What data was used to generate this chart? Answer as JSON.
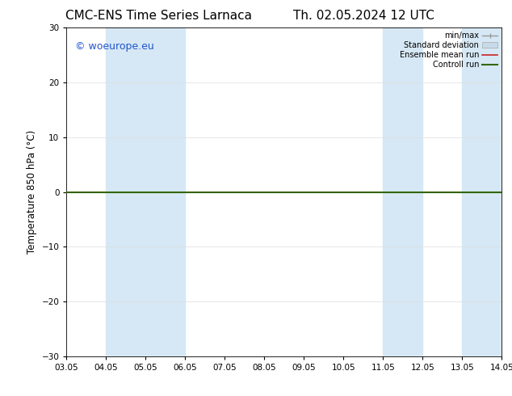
{
  "title_left": "CMC-ENS Time Series Larnaca",
  "title_right": "Th. 02.05.2024 12 UTC",
  "ylabel": "Temperature 850 hPa (°C)",
  "ylim": [
    -30,
    30
  ],
  "yticks": [
    -30,
    -20,
    -10,
    0,
    10,
    20,
    30
  ],
  "xtick_labels": [
    "03.05",
    "04.05",
    "05.05",
    "06.05",
    "07.05",
    "08.05",
    "09.05",
    "10.05",
    "11.05",
    "12.05",
    "13.05",
    "14.05"
  ],
  "xtick_positions": [
    0,
    1,
    2,
    3,
    4,
    5,
    6,
    7,
    8,
    9,
    10,
    11
  ],
  "bg_color": "#ffffff",
  "plot_bg_color": "#ffffff",
  "shaded_bands": [
    {
      "xstart": 1.0,
      "xend": 3.0,
      "color": "#d6e8f5"
    },
    {
      "xstart": 8.0,
      "xend": 9.0,
      "color": "#d6e8f5"
    },
    {
      "xstart": 10.0,
      "xend": 11.0,
      "color": "#d6e8f5"
    },
    {
      "xstart": 11.0,
      "xend": 11.5,
      "color": "#d6e8f5"
    }
  ],
  "flat_line_y": 0,
  "flat_line_color_green": "#336600",
  "flat_line_color_red": "#cc2222",
  "watermark_text": "© woeurope.eu",
  "watermark_color": "#2255cc",
  "legend_minmax_color": "#999999",
  "legend_std_color": "#c8daea",
  "title_fontsize": 11,
  "label_fontsize": 8.5,
  "tick_fontsize": 7.5,
  "watermark_fontsize": 9
}
